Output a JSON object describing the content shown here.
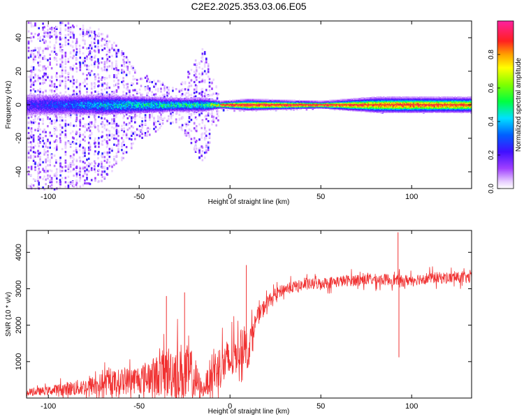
{
  "figure_title": "C2E2.2025.353.03.06.E05",
  "colors": {
    "snr_line": "#f03030",
    "band_core": "#e83030",
    "axis": "#000000",
    "background": "#ffffff"
  },
  "chart_data": [
    {
      "type": "heatmap",
      "title": "C2E2.2025.353.03.06.E05",
      "xlabel": "Height of straight line (km)",
      "ylabel": "Frequency (Hz)",
      "xlim": [
        -112,
        133
      ],
      "ylim": [
        -50,
        50
      ],
      "xticks": [
        -100,
        -50,
        0,
        50,
        100
      ],
      "yticks": [
        -40,
        -20,
        0,
        20,
        40
      ],
      "colorbar": {
        "label": "Normalized spectral amplitude",
        "range": [
          0,
          1
        ],
        "ticks": [
          0.0,
          0.2,
          0.4,
          0.6,
          0.8
        ],
        "tick_labels": [
          "0.0",
          "0.2",
          "0.4",
          "0.6",
          "0.8"
        ],
        "colormap": "rainbow (violet-blue-cyan-green-yellow-red-magenta)"
      },
      "description_points": [
        {
          "x": -112,
          "noise_spread_hz": 50,
          "band_half_width_hz": 6,
          "band_level": 0.25
        },
        {
          "x": -90,
          "noise_spread_hz": 50,
          "band_half_width_hz": 5,
          "band_level": 0.35
        },
        {
          "x": -70,
          "noise_spread_hz": 45,
          "band_half_width_hz": 5,
          "band_level": 0.45
        },
        {
          "x": -50,
          "noise_spread_hz": 20,
          "band_half_width_hz": 4,
          "band_level": 0.5
        },
        {
          "x": -30,
          "noise_spread_hz": 10,
          "band_half_width_hz": 3,
          "band_level": 0.55
        },
        {
          "x": -15,
          "noise_spread_hz": 35,
          "band_half_width_hz": 3,
          "band_level": 0.55
        },
        {
          "x": -5,
          "noise_spread_hz": 3,
          "band_half_width_hz": 1,
          "band_level": 0.95
        },
        {
          "x": 10,
          "noise_spread_hz": 3,
          "band_half_width_hz": 2,
          "band_level": 0.95
        },
        {
          "x": 50,
          "noise_spread_hz": 2,
          "band_half_width_hz": 1,
          "band_level": 0.95
        },
        {
          "x": 80,
          "noise_spread_hz": 4,
          "band_half_width_hz": 3,
          "band_level": 0.85
        },
        {
          "x": 93,
          "noise_spread_hz": 4,
          "band_half_width_hz": 3,
          "band_level": 0.9
        },
        {
          "x": 133,
          "noise_spread_hz": 4,
          "band_half_width_hz": 3,
          "band_level": 0.85
        }
      ]
    },
    {
      "type": "line",
      "xlabel": "Height of straight line (km)",
      "ylabel": "SNR (10 * v/v)",
      "xlim": [
        -112,
        133
      ],
      "ylim": [
        0,
        4600
      ],
      "xticks": [
        -100,
        -50,
        0,
        50,
        100
      ],
      "yticks": [
        1000,
        2000,
        3000,
        4000
      ],
      "series": [
        {
          "name": "SNR",
          "x": [
            -112,
            -100,
            -90,
            -80,
            -70,
            -60,
            -50,
            -40,
            -35,
            -30,
            -25,
            -20,
            -15,
            -10,
            -5,
            0,
            5,
            8,
            10,
            12,
            15,
            20,
            25,
            30,
            40,
            50,
            60,
            70,
            80,
            90,
            92,
            93,
            94,
            100,
            110,
            120,
            133
          ],
          "mean": [
            150,
            200,
            250,
            300,
            380,
            450,
            520,
            620,
            700,
            750,
            650,
            550,
            200,
            700,
            900,
            1000,
            1300,
            1500,
            1200,
            1800,
            2200,
            2600,
            2850,
            3000,
            3100,
            3150,
            3200,
            3250,
            3250,
            3250,
            3200,
            3300,
            3200,
            3250,
            3300,
            3300,
            3300
          ],
          "spread": [
            120,
            150,
            250,
            300,
            400,
            450,
            500,
            700,
            900,
            1000,
            1100,
            900,
            200,
            700,
            800,
            800,
            600,
            700,
            600,
            400,
            300,
            250,
            200,
            200,
            200,
            200,
            200,
            200,
            200,
            200,
            200,
            200,
            200,
            200,
            200,
            200,
            200
          ],
          "spikes": [
            {
              "x": -35,
              "y": 2800
            },
            {
              "x": -25,
              "y": 2900
            },
            {
              "x": 9,
              "y": 3650
            },
            {
              "x": 92.5,
              "y": 4550
            },
            {
              "x": 93,
              "y": 1120
            }
          ]
        }
      ]
    }
  ]
}
